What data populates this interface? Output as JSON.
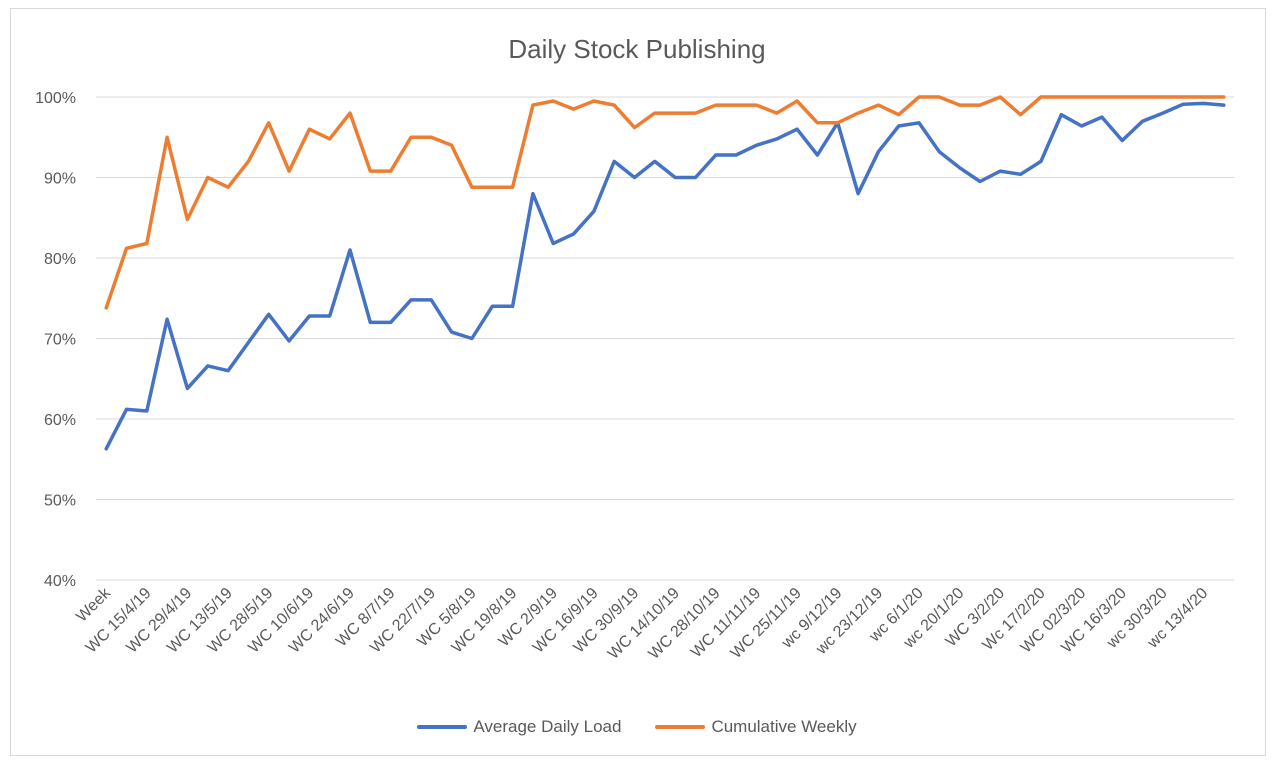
{
  "chart_data": {
    "type": "line",
    "title": "Daily Stock Publishing",
    "xlabel": "",
    "ylabel": "",
    "ylim": [
      40,
      100
    ],
    "yticks": [
      "40%",
      "50%",
      "60%",
      "70%",
      "80%",
      "90%",
      "100%"
    ],
    "grid": true,
    "legend": "bottom",
    "categories": [
      "Week",
      "",
      "WC 15/4/19",
      "",
      "WC 29/4/19",
      "",
      "WC 13/5/19",
      "",
      "WC 28/5/19",
      "",
      "WC 10/6/19",
      "",
      "WC 24/6/19",
      "",
      "WC 8/7/19",
      "",
      "WC 22/7/19",
      "",
      "WC 5/8/19",
      "",
      "WC 19/8/19",
      "",
      "WC 2/9/19",
      "",
      "WC 16/9/19",
      "",
      "WC 30/9/19",
      "",
      "WC 14/10/19",
      "",
      "WC 28/10/19",
      "",
      "WC 11/11/19",
      "",
      "WC 25/11/19",
      "",
      "wc 9/12/19",
      "",
      "wc 23/12/19",
      "",
      "wc 6/1/20",
      "",
      "wc 20/1/20",
      "",
      "WC 3/2/20",
      "",
      "Wc 17/2/20",
      "",
      "WC 02/3/20",
      "",
      "WC 16/3/20",
      "",
      "wc 30/3/20",
      "",
      "wc 13/4/20",
      ""
    ],
    "series": [
      {
        "name": "Average Daily Load",
        "color": "#4472c4",
        "values": [
          56.3,
          61.2,
          61,
          72.4,
          63.8,
          66.6,
          66,
          69.5,
          73,
          69.7,
          72.8,
          72.8,
          81,
          72,
          72,
          74.8,
          74.8,
          70.8,
          70,
          74,
          74,
          88,
          81.8,
          83,
          85.8,
          92,
          90,
          92,
          90,
          90,
          92.8,
          92.8,
          94,
          94.8,
          96,
          92.8,
          96.8,
          88,
          93.2,
          96.4,
          96.8,
          93.2,
          91.2,
          89.5,
          90.8,
          90.4,
          92,
          97.8,
          96.4,
          97.5,
          94.6,
          97,
          98,
          99.1,
          99.2,
          99
        ]
      },
      {
        "name": "Cumulative Weekly",
        "color": "#ed7d31",
        "values": [
          73.8,
          81.2,
          81.8,
          95,
          84.8,
          90,
          88.8,
          92,
          96.8,
          90.8,
          96,
          94.8,
          98,
          90.8,
          90.8,
          95,
          95,
          94,
          88.8,
          88.8,
          88.8,
          99,
          99.5,
          98.5,
          99.5,
          99,
          96.2,
          98,
          98,
          98,
          99,
          99,
          99,
          98,
          99.5,
          96.8,
          96.8,
          98,
          99,
          97.8,
          100,
          100,
          99,
          99,
          100,
          97.8,
          100,
          100,
          100,
          100,
          100,
          100,
          100,
          100,
          100,
          100
        ]
      }
    ]
  }
}
